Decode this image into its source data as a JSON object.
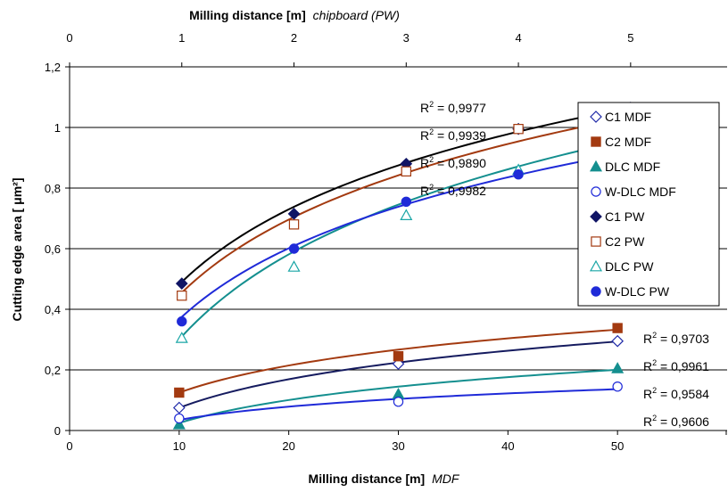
{
  "chart_data": {
    "type": "scatter",
    "title_top": "Milling distance [m]",
    "title_top_italic": "chipboard (PW)",
    "xlabel": "Milling distance [m]",
    "xlabel_italic": "MDF",
    "ylabel": "Cutting edge area [ μm²]",
    "xlim": [
      0,
      60
    ],
    "xticks": [
      "0",
      "10",
      "20",
      "30",
      "40",
      "50"
    ],
    "x2lim": [
      0,
      5.86
    ],
    "x2ticks": [
      "0",
      "1",
      "2",
      "3",
      "4",
      "5"
    ],
    "ylim": [
      0,
      1.2
    ],
    "yticks": [
      "0",
      "0,2",
      "0,4",
      "0,6",
      "0,8",
      "1",
      "1,2"
    ],
    "grid": "horizontal",
    "legend_position": "top-right",
    "series": [
      {
        "name": "C1 MDF",
        "marker": "diamond-open",
        "color": "#1f2aa8",
        "axis": "bottom",
        "x": [
          10,
          30,
          50
        ],
        "y": [
          0.075,
          0.22,
          0.295
        ],
        "trend": {
          "color": "#151b5f",
          "a": 0.075,
          "b": 0.1358
        }
      },
      {
        "name": "C2 MDF",
        "marker": "square",
        "color": "#a33a10",
        "axis": "bottom",
        "x": [
          10,
          30,
          50
        ],
        "y": [
          0.125,
          0.245,
          0.338
        ],
        "trend": {
          "color": "#a33a10",
          "a": 0.125,
          "b": 0.1291
        }
      },
      {
        "name": "DLC MDF",
        "marker": "triangle",
        "color": "#148f8f",
        "axis": "bottom",
        "x": [
          10,
          30,
          50
        ],
        "y": [
          0.02,
          0.12,
          0.205
        ],
        "trend": {
          "color": "#148f8f",
          "a": 0.025,
          "b": 0.109
        }
      },
      {
        "name": "W-DLC MDF",
        "marker": "circle-open",
        "color": "#1f2ad8",
        "axis": "bottom",
        "x": [
          10,
          30,
          50
        ],
        "y": [
          0.04,
          0.095,
          0.145
        ],
        "trend": {
          "color": "#1f2ad8",
          "a": 0.035,
          "b": 0.063
        }
      },
      {
        "name": "C1 PW",
        "marker": "diamond",
        "color": "#101565",
        "axis": "top",
        "x": [
          1,
          2,
          3,
          4,
          5
        ],
        "y": [
          0.485,
          0.715,
          0.88,
          0.995,
          1.065
        ],
        "trend": {
          "color": "#000000",
          "a": 0.49,
          "b": 0.358
        }
      },
      {
        "name": "C2 PW",
        "marker": "square-open",
        "color": "#a33a10",
        "axis": "top",
        "x": [
          1,
          2,
          3,
          4,
          5
        ],
        "y": [
          0.445,
          0.68,
          0.855,
          0.995,
          1.04
        ],
        "trend": {
          "color": "#a33a10",
          "a": 0.455,
          "b": 0.36
        }
      },
      {
        "name": "DLC PW",
        "marker": "triangle-open",
        "color": "#1aa6a6",
        "axis": "top",
        "x": [
          1,
          2,
          3,
          4,
          5
        ],
        "y": [
          0.305,
          0.54,
          0.71,
          0.86,
          0.975
        ],
        "trend": {
          "color": "#148f8f",
          "a": 0.31,
          "b": 0.405
        }
      },
      {
        "name": "W-DLC PW",
        "marker": "circle",
        "color": "#1f2ad8",
        "axis": "top",
        "x": [
          1,
          2,
          3,
          4,
          5
        ],
        "y": [
          0.36,
          0.6,
          0.755,
          0.845,
          0.91
        ],
        "trend": {
          "color": "#1f2ad8",
          "a": 0.375,
          "b": 0.338
        }
      }
    ],
    "annotations": [
      {
        "text": "R² = 0,9977",
        "group": "top"
      },
      {
        "text": "R² = 0,9939",
        "group": "top"
      },
      {
        "text": "R² = 0,9890",
        "group": "top"
      },
      {
        "text": "R² = 0,9982",
        "group": "top"
      },
      {
        "text": "R² = 0,9703",
        "group": "bottom"
      },
      {
        "text": "R² = 0,9961",
        "group": "bottom"
      },
      {
        "text": "R² = 0,9584",
        "group": "bottom"
      },
      {
        "text": "R² = 0,9606",
        "group": "bottom"
      }
    ]
  }
}
